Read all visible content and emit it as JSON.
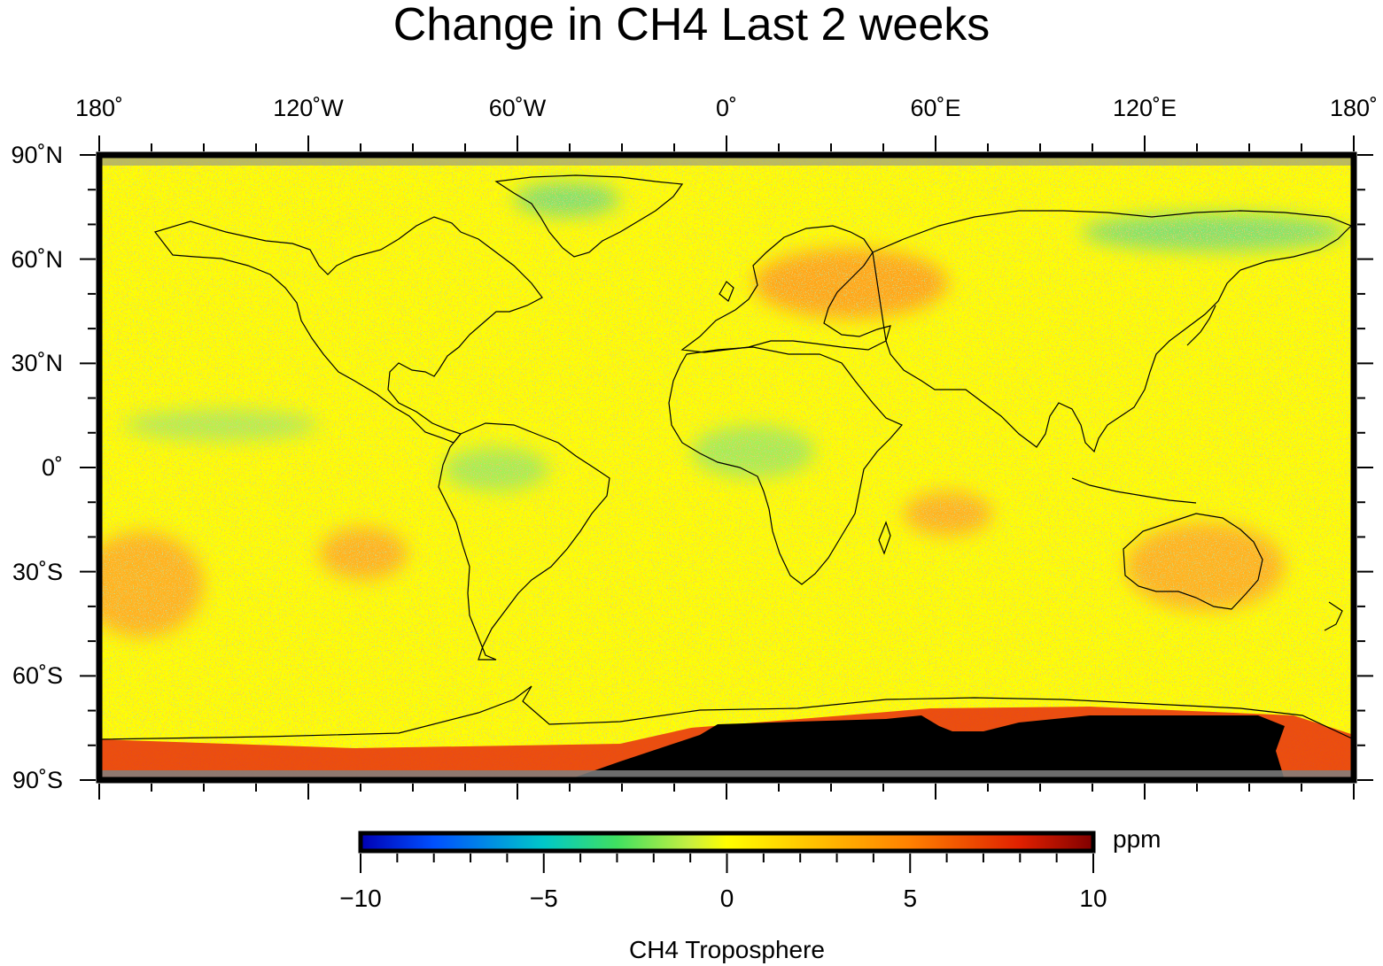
{
  "title": "Change in CH4 Last 2 weeks",
  "map": {
    "projection": "equirectangular",
    "lon_range": [
      -180,
      180
    ],
    "lat_range": [
      -90,
      90
    ],
    "lon_labels": [
      {
        "lon": -180,
        "text": "180˚"
      },
      {
        "lon": -120,
        "text": "120˚W"
      },
      {
        "lon": -60,
        "text": "60˚W"
      },
      {
        "lon": 0,
        "text": "0˚"
      },
      {
        "lon": 60,
        "text": "60˚E"
      },
      {
        "lon": 120,
        "text": "120˚E"
      },
      {
        "lon": 180,
        "text": "180˚"
      }
    ],
    "lat_labels": [
      {
        "lat": 90,
        "text": "90˚N"
      },
      {
        "lat": 60,
        "text": "60˚N"
      },
      {
        "lat": 30,
        "text": "30˚N"
      },
      {
        "lat": 0,
        "text": "0˚"
      },
      {
        "lat": -30,
        "text": "30˚S"
      },
      {
        "lat": -60,
        "text": "60˚S"
      },
      {
        "lat": -90,
        "text": "90˚S"
      }
    ],
    "colors": {
      "background_field": "#ffff00",
      "orange_anomaly": "#ff9a2a",
      "green_anomaly": "#6ee08a",
      "missing_data": "#808080",
      "coastline": "#000000"
    }
  },
  "colorbar": {
    "min": -10,
    "max": 10,
    "ticks": [
      {
        "value": -10,
        "text": "−10"
      },
      {
        "value": -5,
        "text": "−5"
      },
      {
        "value": 0,
        "text": "0"
      },
      {
        "value": 5,
        "text": "5"
      },
      {
        "value": 10,
        "text": "10"
      }
    ],
    "unit": "ppm",
    "label": "CH4 Troposphere",
    "colors": [
      "#0000b4",
      "#0050ff",
      "#00c8c8",
      "#40e060",
      "#c8f040",
      "#ffff00",
      "#ffc000",
      "#ff8000",
      "#e02000",
      "#800000"
    ]
  }
}
